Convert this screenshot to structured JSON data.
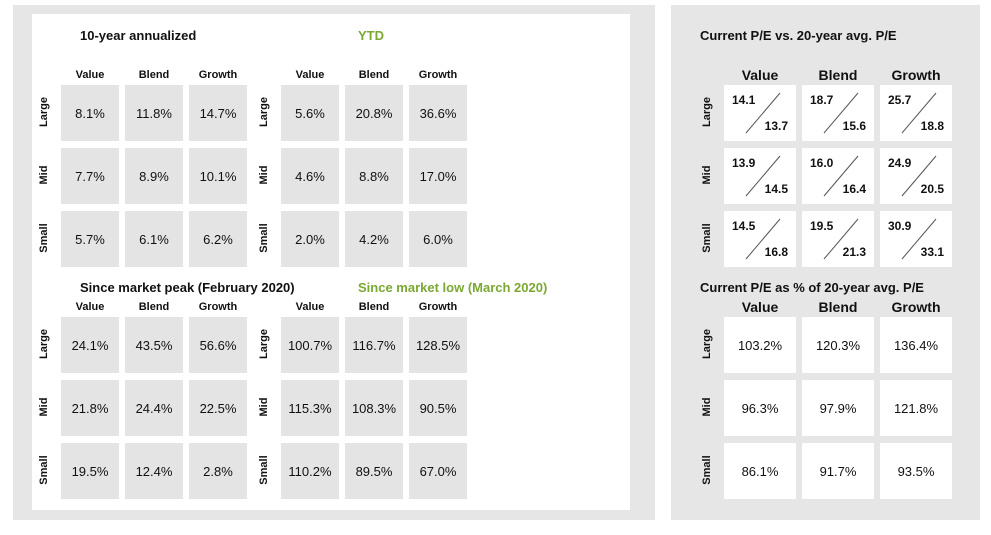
{
  "rows": [
    "Large",
    "Mid",
    "Small"
  ],
  "cols": [
    "Value",
    "Blend",
    "Growth"
  ],
  "colors": {
    "panel": "#e6e6e6",
    "tile": "#e4e4e4",
    "green": "#7aa832"
  },
  "chart_data": [
    {
      "type": "table",
      "title": "10-year annualized",
      "values": [
        [
          "8.1%",
          "11.8%",
          "14.7%"
        ],
        [
          "7.7%",
          "8.9%",
          "10.1%"
        ],
        [
          "5.7%",
          "6.1%",
          "6.2%"
        ]
      ]
    },
    {
      "type": "table",
      "title": "YTD",
      "values": [
        [
          "5.6%",
          "20.8%",
          "36.6%"
        ],
        [
          "4.6%",
          "8.8%",
          "17.0%"
        ],
        [
          "2.0%",
          "4.2%",
          "6.0%"
        ]
      ]
    },
    {
      "type": "table",
      "title": "Since market peak (February 2020)",
      "values": [
        [
          "24.1%",
          "43.5%",
          "56.6%"
        ],
        [
          "21.8%",
          "24.4%",
          "22.5%"
        ],
        [
          "19.5%",
          "12.4%",
          "2.8%"
        ]
      ]
    },
    {
      "type": "table",
      "title": "Since market low (March 2020)",
      "values": [
        [
          "100.7%",
          "116.7%",
          "128.5%"
        ],
        [
          "115.3%",
          "108.3%",
          "90.5%"
        ],
        [
          "110.2%",
          "89.5%",
          "67.0%"
        ]
      ]
    },
    {
      "type": "table",
      "title": "Current P/E vs. 20-year avg. P/E",
      "current": [
        [
          "14.1",
          "18.7",
          "25.7"
        ],
        [
          "13.9",
          "16.0",
          "24.9"
        ],
        [
          "14.5",
          "19.5",
          "30.9"
        ]
      ],
      "avg": [
        [
          "13.7",
          "15.6",
          "18.8"
        ],
        [
          "14.5",
          "16.4",
          "20.5"
        ],
        [
          "16.8",
          "21.3",
          "33.1"
        ]
      ]
    },
    {
      "type": "table",
      "title": "Current P/E as % of 20-year avg. P/E",
      "values": [
        [
          "103.2%",
          "120.3%",
          "136.4%"
        ],
        [
          "96.3%",
          "97.9%",
          "121.8%"
        ],
        [
          "86.1%",
          "91.7%",
          "93.5%"
        ]
      ]
    }
  ]
}
